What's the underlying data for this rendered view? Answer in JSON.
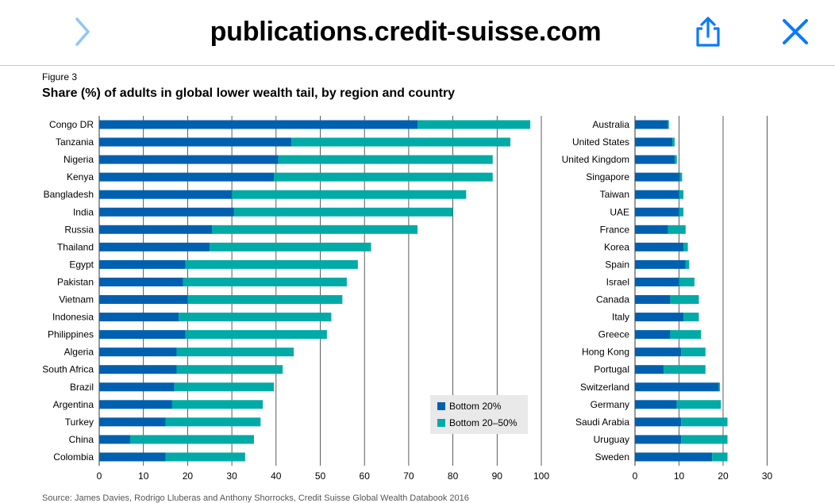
{
  "browser": {
    "url": "publications.credit-suisse.com",
    "forward_icon": "chevron-right-icon",
    "share_icon": "share-icon",
    "close_icon": "close-icon",
    "accent_color": "#0a7aff",
    "forward_color": "#8ec7f2"
  },
  "figure": {
    "label": "Figure 3",
    "title": "Share (%) of adults in global lower wealth tail, by region and country",
    "source": "Source: James Davies, Rodrigo Lluberas and Anthony Shorrocks, Credit Suisse Global Wealth Databook 2016"
  },
  "chart_data": [
    {
      "type": "bar",
      "orientation": "horizontal",
      "stacked": true,
      "categories": [
        "Congo DR",
        "Tanzania",
        "Nigeria",
        "Kenya",
        "Bangladesh",
        "India",
        "Russia",
        "Thailand",
        "Egypt",
        "Pakistan",
        "Vietnam",
        "Indonesia",
        "Philippines",
        "Algeria",
        "South Africa",
        "Brazil",
        "Argentina",
        "Turkey",
        "China",
        "Colombia"
      ],
      "series": [
        {
          "name": "Bottom 20%",
          "color": "#0060b0",
          "values": [
            72,
            43.5,
            40.5,
            39.5,
            30,
            30.5,
            25.5,
            25,
            19.5,
            19,
            20,
            18,
            19.5,
            17.5,
            17.5,
            17,
            16.5,
            15,
            7,
            15
          ]
        },
        {
          "name": "Bottom 20–50%",
          "color": "#00aaa6",
          "values": [
            25.5,
            49.5,
            48.5,
            49.5,
            53,
            49.5,
            46.5,
            36.5,
            39,
            37,
            35,
            34.5,
            32,
            26.5,
            24,
            22.5,
            20.5,
            21.5,
            28,
            18
          ]
        }
      ],
      "xlim": [
        0,
        100
      ],
      "xticks": [
        0,
        10,
        20,
        30,
        40,
        50,
        60,
        70,
        80,
        90,
        100
      ],
      "legend": {
        "position": "bottom-right",
        "entries": [
          "Bottom 20%",
          "Bottom 20–50%"
        ]
      },
      "grid": true
    },
    {
      "type": "bar",
      "orientation": "horizontal",
      "stacked": true,
      "categories": [
        "Australia",
        "United States",
        "United Kingdom",
        "Singapore",
        "Taiwan",
        "UAE",
        "France",
        "Korea",
        "Spain",
        "Israel",
        "Canada",
        "Italy",
        "Greece",
        "Hong Kong",
        "Portugal",
        "Switzerland",
        "Germany",
        "Saudi Arabia",
        "Uruguay",
        "Sweden"
      ],
      "series": [
        {
          "name": "Bottom 20%",
          "color": "#0060b0",
          "values": [
            7.5,
            8.5,
            9,
            10.2,
            10,
            10,
            7.5,
            11,
            11.5,
            10,
            8,
            11,
            8,
            10.5,
            6.5,
            19,
            9.5,
            10.5,
            10.5,
            17.5
          ]
        },
        {
          "name": "Bottom 20–50%",
          "color": "#00aaa6",
          "values": [
            0.2,
            0.5,
            0.5,
            0.5,
            1,
            1,
            4,
            1,
            0.8,
            3.5,
            6.5,
            3.5,
            7,
            5.5,
            9.5,
            0.3,
            10,
            10.5,
            10.5,
            3.5
          ]
        }
      ],
      "xlim": [
        0,
        30
      ],
      "xticks": [
        0,
        10,
        20,
        30
      ],
      "grid": true
    }
  ]
}
